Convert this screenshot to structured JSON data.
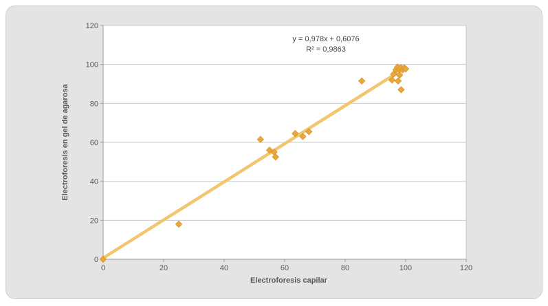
{
  "chart_data": {
    "type": "scatter",
    "title": "",
    "xlabel": "Electroforesis capilar",
    "ylabel": "Electroforesis en gel de agarosa",
    "xlim": [
      0,
      120
    ],
    "ylim": [
      0,
      120
    ],
    "xticks": [
      0,
      20,
      40,
      60,
      80,
      100,
      120
    ],
    "yticks": [
      0,
      20,
      40,
      60,
      80,
      100,
      120
    ],
    "grid": "horizontal",
    "legend": "none",
    "points": [
      [
        0,
        0
      ],
      [
        25,
        18
      ],
      [
        52,
        61.5
      ],
      [
        55,
        56
      ],
      [
        56.5,
        55
      ],
      [
        57,
        52.5
      ],
      [
        63.5,
        64.5
      ],
      [
        66,
        63
      ],
      [
        68,
        65.5
      ],
      [
        85.5,
        91.5
      ],
      [
        95.5,
        92
      ],
      [
        96,
        95
      ],
      [
        97.5,
        91.5
      ],
      [
        98,
        94.5
      ],
      [
        96.8,
        97.3
      ],
      [
        97.3,
        98.6
      ],
      [
        97.9,
        97.6
      ],
      [
        98.4,
        98.4
      ],
      [
        99,
        97.2
      ],
      [
        99.5,
        98.2
      ],
      [
        100,
        97.7
      ],
      [
        98.5,
        87
      ]
    ],
    "trendline": {
      "slope": 0.978,
      "intercept": 0.6076,
      "x_range": [
        0,
        100
      ]
    },
    "annotation": {
      "line1": "y = 0,978x + 0,6076",
      "line2": "R² = 0,9863"
    },
    "colors": {
      "marker_fill": "#EBA73F",
      "marker_stroke": "#D9992F",
      "trendline": "#F1C66E",
      "gridline": "#C9C9C9",
      "plot_border": "#C4C4C4",
      "axis_line": "#9C9C9C",
      "tick_text": "#595959",
      "card_bg": "#E4E4E4",
      "plot_bg": "#FFFFFF"
    }
  }
}
